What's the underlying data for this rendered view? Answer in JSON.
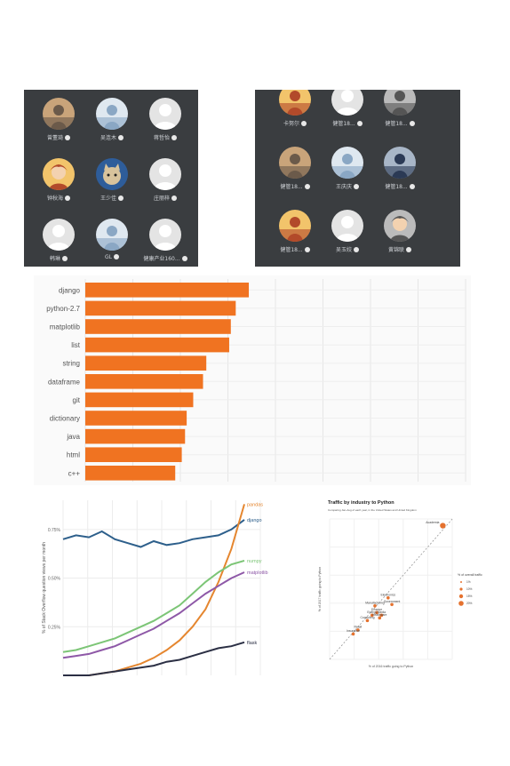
{
  "panel_left": {
    "users": [
      {
        "name": "曾董琦",
        "avatar": "photo-avatar"
      },
      {
        "name": "吴连木",
        "avatar": "photo-avatar"
      },
      {
        "name": "蒋哲怡",
        "avatar": "default-avatar"
      },
      {
        "name": "钟秋海",
        "avatar": "cartoon-avatar"
      },
      {
        "name": "王少佳",
        "avatar": "cat-avatar"
      },
      {
        "name": "庄丽梓",
        "avatar": "default-avatar"
      },
      {
        "name": "韩琳",
        "avatar": "default-avatar"
      },
      {
        "name": "GL",
        "avatar": "photo-avatar"
      },
      {
        "name": "健康产业160...",
        "avatar": "default-avatar"
      }
    ]
  },
  "panel_right": {
    "users": [
      {
        "name": "卡努尔",
        "avatar": "photo-avatar"
      },
      {
        "name": "健管18...",
        "avatar": "default-avatar"
      },
      {
        "name": "健管18...",
        "avatar": "photo-avatar"
      },
      {
        "name": "健管18...",
        "avatar": "photo-avatar"
      },
      {
        "name": "王庆庆",
        "avatar": "photo-avatar"
      },
      {
        "name": "健管18...",
        "avatar": "photo-avatar"
      },
      {
        "name": "健管18...",
        "avatar": "photo-avatar"
      },
      {
        "name": "吴玉姣",
        "avatar": "default-avatar"
      },
      {
        "name": "黄锦联",
        "avatar": "cartoon-avatar"
      }
    ]
  },
  "chart_data": [
    {
      "type": "bar",
      "orientation": "horizontal",
      "categories": [
        "django",
        "python-2.7",
        "matplotlib",
        "list",
        "string",
        "dataframe",
        "git",
        "dictionary",
        "java",
        "html",
        "c++"
      ],
      "values": [
        100,
        92,
        89,
        88,
        74,
        72,
        66,
        62,
        61,
        59,
        55
      ],
      "color": "#f07321",
      "grid": true
    },
    {
      "type": "line",
      "ylabel": "% of Stack Overflow question views per month",
      "yticks": [
        "0.75%",
        "0.50%",
        "0.25%"
      ],
      "series": [
        {
          "name": "django",
          "color": "#2d5f8b",
          "values": [
            0.7,
            0.72,
            0.71,
            0.74,
            0.7,
            0.68,
            0.66,
            0.69,
            0.67,
            0.68,
            0.7,
            0.71,
            0.72,
            0.75,
            0.8
          ]
        },
        {
          "name": "pandas",
          "color": "#e5862f",
          "values": [
            0.0,
            0.0,
            0.0,
            0.01,
            0.02,
            0.04,
            0.06,
            0.09,
            0.13,
            0.18,
            0.25,
            0.34,
            0.48,
            0.65,
            0.88
          ]
        },
        {
          "name": "numpy",
          "color": "#7cc576",
          "values": [
            0.12,
            0.13,
            0.15,
            0.17,
            0.19,
            0.22,
            0.25,
            0.28,
            0.32,
            0.36,
            0.42,
            0.48,
            0.53,
            0.57,
            0.59
          ]
        },
        {
          "name": "matplotlib",
          "color": "#8e58a7",
          "values": [
            0.09,
            0.1,
            0.11,
            0.13,
            0.15,
            0.18,
            0.21,
            0.24,
            0.28,
            0.32,
            0.37,
            0.42,
            0.46,
            0.5,
            0.53
          ]
        },
        {
          "name": "flask",
          "color": "#2b2f44",
          "values": [
            0.0,
            0.0,
            0.0,
            0.01,
            0.02,
            0.03,
            0.04,
            0.05,
            0.07,
            0.08,
            0.1,
            0.12,
            0.14,
            0.15,
            0.17
          ]
        }
      ]
    },
    {
      "type": "scatter",
      "title": "Traffic by industry to Python",
      "subtitle": "Comparing Jan-Aug of each year, in the United States and United Kingdom",
      "xlabel": "% of 2016 traffic going to Python",
      "ylabel": "% of 2017 traffic going to Python",
      "legend_title": "% of overall traffic",
      "legend_items": [
        "1%",
        "10%",
        "15%",
        "20%"
      ],
      "points": [
        {
          "label": "Academia",
          "x": 1.2,
          "y": 2.0
        },
        {
          "label": "Electronics",
          "x": 0.62,
          "y": 0.92
        },
        {
          "label": "Government",
          "x": 0.66,
          "y": 0.82
        },
        {
          "label": "Manufacturing",
          "x": 0.48,
          "y": 0.8
        },
        {
          "label": "Finance",
          "x": 0.5,
          "y": 0.7
        },
        {
          "label": "Energy",
          "x": 0.45,
          "y": 0.66
        },
        {
          "label": "Media",
          "x": 0.55,
          "y": 0.66
        },
        {
          "label": "Healthcare",
          "x": 0.53,
          "y": 0.62
        },
        {
          "label": "Consulting",
          "x": 0.4,
          "y": 0.58
        },
        {
          "label": "Retail",
          "x": 0.3,
          "y": 0.44
        },
        {
          "label": "Insurance",
          "x": 0.25,
          "y": 0.38
        }
      ]
    }
  ]
}
